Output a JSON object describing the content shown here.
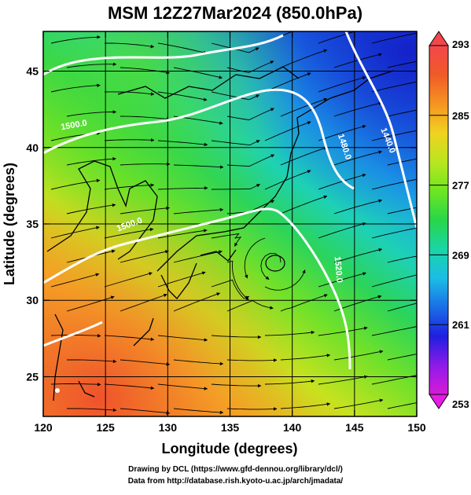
{
  "map": {
    "title": "MSM 12Z27Mar2024 (850.0hPa)",
    "x_axis": {
      "label": "Longitude (degrees)",
      "range": [
        120,
        150
      ],
      "ticks": [
        120,
        125,
        130,
        135,
        140,
        145,
        150
      ],
      "tick_labels": [
        "120",
        "125",
        "130",
        "135",
        "140",
        "145",
        "150"
      ]
    },
    "y_axis": {
      "label": "Latitude  (degrees)",
      "range": [
        22.4,
        47.6
      ],
      "ticks": [
        25,
        30,
        35,
        40,
        45
      ],
      "tick_labels": [
        "25",
        "30",
        "35",
        "40",
        "45"
      ]
    },
    "colorbar": {
      "min": 253,
      "max": 293,
      "tick_labels": [
        "293",
        "285",
        "277",
        "269",
        "261",
        "253"
      ],
      "tick_values": [
        293,
        285,
        277,
        269,
        261,
        253
      ],
      "colors": [
        "#d81bd8",
        "#8e1be8",
        "#1f1fe0",
        "#1b6ee6",
        "#1bbde6",
        "#19d6a6",
        "#27d64a",
        "#6ee622",
        "#b9e61f",
        "#f0d21f",
        "#f59422",
        "#ef5a29",
        "#f4474b"
      ]
    },
    "contour_labels": [
      {
        "text": "1500.0",
        "lon": 122.5,
        "lat": 41.3,
        "rotate": -10
      },
      {
        "text": "1440.0",
        "lon": 147.5,
        "lat": 40.4,
        "rotate": 68
      },
      {
        "text": "1480.0",
        "lon": 144.0,
        "lat": 40.0,
        "rotate": 72
      },
      {
        "text": "1500.0",
        "lon": 127.0,
        "lat": 34.8,
        "rotate": -20
      },
      {
        "text": "1520.0",
        "lon": 143.5,
        "lat": 32.0,
        "rotate": 85
      }
    ]
  },
  "credits": {
    "line1": "Drawing by DCL (https://www.gfd-dennou.org/library/dcl/)",
    "line2": "Data from http://database.rish.kyoto-u.ac.jp/arch/jmadata/"
  }
}
